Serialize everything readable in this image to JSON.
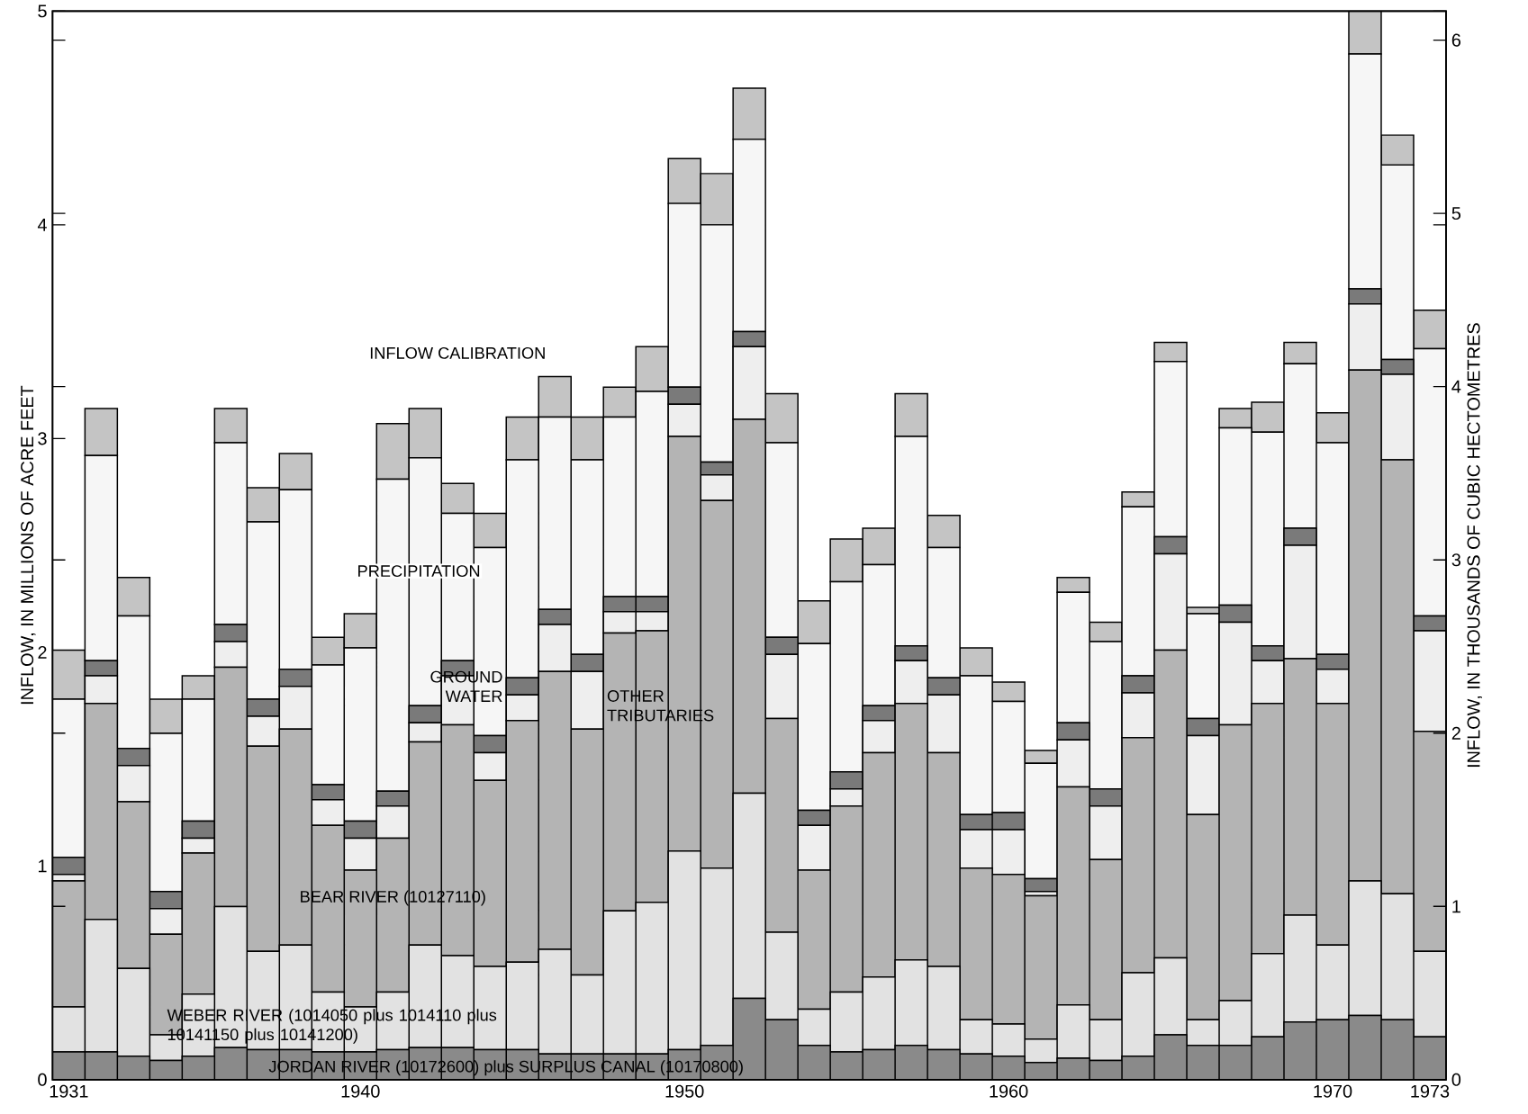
{
  "chart_data": {
    "type": "bar",
    "stacked": true,
    "ylabel": "INFLOW, IN MILLIONS OF ACRE FEET",
    "y2label": "INFLOW, IN THOUSANDS OF CUBIC HECTOMETRES",
    "categories": [
      "1931",
      null,
      null,
      null,
      null,
      null,
      null,
      null,
      null,
      "1940",
      null,
      null,
      null,
      null,
      null,
      null,
      null,
      null,
      null,
      "1950",
      null,
      null,
      null,
      null,
      null,
      null,
      null,
      null,
      null,
      "1960",
      null,
      null,
      null,
      null,
      null,
      null,
      null,
      null,
      null,
      "1970",
      null,
      null,
      "1973"
    ],
    "ylim": [
      0,
      5
    ],
    "yticks": [
      0,
      1,
      2,
      3,
      4,
      5
    ],
    "y2lim": [
      0,
      6.1675
    ],
    "y2ticks": [
      0,
      1,
      2,
      3,
      4,
      5,
      6
    ],
    "series": [
      {
        "name": "JORDAN RIVER (10172600) plus SURPLUS CANAL (10170800)",
        "color": "#8a8a8a",
        "values": [
          0.13,
          0.13,
          0.11,
          0.09,
          0.11,
          0.15,
          0.14,
          0.14,
          0.13,
          0.13,
          0.14,
          0.15,
          0.15,
          0.14,
          0.14,
          0.12,
          0.12,
          0.12,
          0.12,
          0.14,
          0.16,
          0.38,
          0.28,
          0.16,
          0.13,
          0.14,
          0.16,
          0.14,
          0.12,
          0.11,
          0.08,
          0.1,
          0.09,
          0.11,
          0.21,
          0.16,
          0.16,
          0.2,
          0.27,
          0.28,
          0.3,
          0.28,
          0.2
        ]
      },
      {
        "name": "WEBER RIVER (1014050 plus 1014110 plus 10141150 plus 10141200)",
        "color": "#e2e2e2",
        "values": [
          0.21,
          0.62,
          0.41,
          0.12,
          0.29,
          0.66,
          0.46,
          0.49,
          0.28,
          0.21,
          0.27,
          0.48,
          0.43,
          0.39,
          0.41,
          0.49,
          0.37,
          0.67,
          0.71,
          0.93,
          0.83,
          0.96,
          0.41,
          0.17,
          0.28,
          0.34,
          0.4,
          0.39,
          0.16,
          0.15,
          0.11,
          0.25,
          0.19,
          0.39,
          0.36,
          0.12,
          0.21,
          0.39,
          0.5,
          0.35,
          0.63,
          0.59,
          0.4
        ]
      },
      {
        "name": "BEAR RIVER (10127110)",
        "color": "#b4b4b4",
        "values": [
          0.59,
          1.01,
          0.78,
          0.47,
          0.66,
          1.12,
          0.96,
          1.01,
          0.78,
          0.64,
          0.72,
          0.95,
          1.08,
          0.87,
          1.13,
          1.3,
          1.15,
          1.3,
          1.27,
          1.94,
          1.72,
          1.75,
          1.0,
          0.65,
          0.87,
          1.05,
          1.2,
          1.0,
          0.71,
          0.7,
          0.67,
          1.02,
          0.75,
          1.1,
          1.44,
          0.96,
          1.29,
          1.17,
          1.2,
          1.13,
          2.39,
          2.03,
          1.03
        ]
      },
      {
        "name": "OTHER TRIBUTARIES",
        "color": "#eeeeee",
        "values": [
          0.03,
          0.13,
          0.17,
          0.12,
          0.07,
          0.12,
          0.14,
          0.2,
          0.12,
          0.15,
          0.15,
          0.09,
          0.23,
          0.13,
          0.12,
          0.22,
          0.27,
          0.1,
          0.09,
          0.15,
          0.12,
          0.34,
          0.3,
          0.21,
          0.08,
          0.15,
          0.2,
          0.27,
          0.18,
          0.21,
          0.02,
          0.22,
          0.25,
          0.21,
          0.45,
          0.37,
          0.48,
          0.2,
          0.53,
          0.16,
          0.31,
          0.4,
          0.47
        ]
      },
      {
        "name": "GROUND WATER",
        "color": "#7a7a7a",
        "values": [
          0.08,
          0.07,
          0.08,
          0.08,
          0.08,
          0.08,
          0.08,
          0.08,
          0.07,
          0.08,
          0.07,
          0.08,
          0.07,
          0.08,
          0.08,
          0.07,
          0.08,
          0.07,
          0.07,
          0.08,
          0.06,
          0.07,
          0.08,
          0.07,
          0.08,
          0.07,
          0.07,
          0.08,
          0.07,
          0.08,
          0.06,
          0.08,
          0.08,
          0.08,
          0.08,
          0.08,
          0.08,
          0.07,
          0.08,
          0.07,
          0.07,
          0.07,
          0.07
        ]
      },
      {
        "name": "PRECIPITATION",
        "color": "#f6f6f6",
        "values": [
          0.74,
          0.96,
          0.62,
          0.74,
          0.57,
          0.85,
          0.83,
          0.84,
          0.56,
          0.81,
          1.46,
          1.16,
          0.69,
          0.88,
          1.02,
          0.9,
          0.91,
          0.84,
          0.96,
          0.86,
          1.11,
          0.9,
          0.91,
          0.78,
          0.89,
          0.66,
          0.98,
          0.61,
          0.65,
          0.52,
          0.54,
          0.61,
          0.69,
          0.79,
          0.82,
          0.49,
          0.83,
          1.0,
          0.77,
          0.99,
          1.1,
          0.91,
          1.25
        ]
      },
      {
        "name": "INFLOW CALIBRATION",
        "color": "#c4c4c4",
        "values": [
          0.23,
          0.22,
          0.18,
          0.16,
          0.11,
          0.16,
          0.16,
          0.17,
          0.13,
          0.16,
          0.26,
          0.23,
          0.14,
          0.16,
          0.2,
          0.19,
          0.2,
          0.14,
          0.21,
          0.21,
          0.24,
          0.24,
          0.23,
          0.2,
          0.2,
          0.17,
          0.2,
          0.15,
          0.13,
          0.09,
          0.06,
          0.07,
          0.09,
          0.07,
          0.09,
          0.03,
          0.09,
          0.14,
          0.1,
          0.14,
          0.2,
          0.14,
          0.18
        ]
      }
    ]
  }
}
